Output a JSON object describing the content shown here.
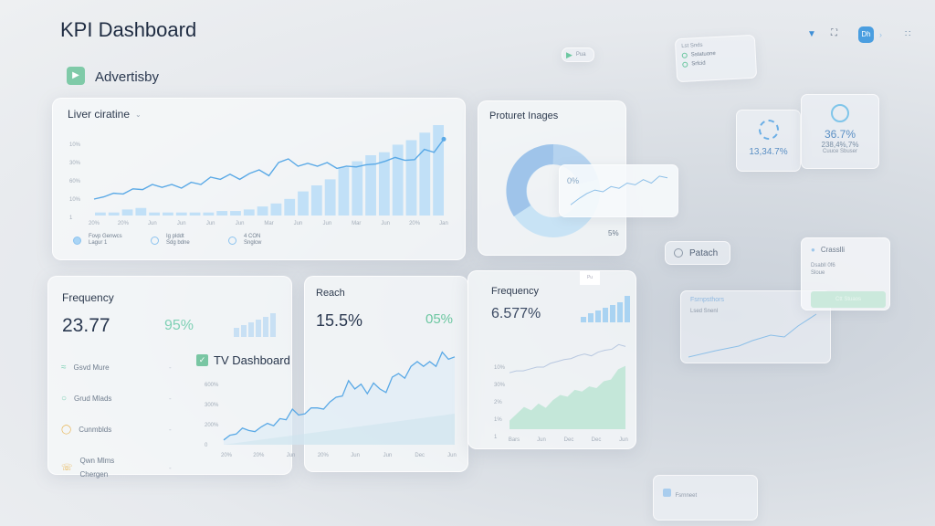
{
  "header": {
    "title": "KPI Dashboard",
    "brand": "Advertisby"
  },
  "colors": {
    "accent": "#5aa9e6",
    "bar": "#b9dcf7",
    "green": "#6cc7a1",
    "teal": "#7fd1b5",
    "amber": "#e8b450"
  },
  "top_icons": [
    "wifi-icon",
    "expand-icon",
    "dh-button",
    "chevron-right-icon",
    "grid-icon"
  ],
  "top_active_label": "Dh",
  "floating": {
    "play_chip": "Pua",
    "list_card": {
      "header": "Lst Snds",
      "items": [
        "Sstatuone",
        "Srfcid"
      ]
    },
    "kpi1": {
      "value": "13,34.7%"
    },
    "kpi2": {
      "value": "36.7%",
      "sub": "238,4%,7%",
      "caption": "Cuuce Sbuser"
    },
    "patach": "Patach",
    "crasslli": {
      "title": "Crasslli",
      "lines": [
        "Dsabll 0f6",
        "Sloue"
      ],
      "button": "Ctt Stuaos"
    },
    "line_card": {
      "title": "Fsrnpsthors",
      "item": "Lsed Snenl"
    },
    "bottom_card": "Fsrnneet"
  },
  "main_chart": {
    "title": "Liver ciratine",
    "y_ticks": [
      "10%",
      "30%",
      "60%",
      "10%",
      "1"
    ],
    "x_ticks": [
      "20%",
      "20%",
      "Jun",
      "Jun",
      "Jun",
      "Jun",
      "Mar",
      "Jun",
      "Jun",
      "Mar",
      "Jun",
      "20%",
      "Jan"
    ],
    "line": [
      10,
      13,
      18,
      17,
      24,
      23,
      30,
      26,
      30,
      25,
      33,
      30,
      40,
      37,
      44,
      37,
      45,
      50,
      42,
      60,
      65,
      55,
      59,
      55,
      60,
      52,
      55,
      54,
      57,
      58,
      62,
      67,
      63,
      64,
      78,
      74,
      92
    ],
    "bars": [
      2,
      2,
      4,
      5,
      2,
      2,
      2,
      2,
      2,
      3,
      3,
      4,
      6,
      8,
      11,
      16,
      20,
      24,
      32,
      36,
      40,
      42,
      47,
      50,
      55,
      60
    ],
    "legend": [
      {
        "l1": "Fovp Genwcs",
        "l2": "Lagur 1"
      },
      {
        "l1": "Ig plddt",
        "l2": "Sdg bdne"
      },
      {
        "l1": "4 CON",
        "l2": "Snglcw"
      }
    ]
  },
  "donut": {
    "title": "Proturet Inages",
    "overlay_value": "0%",
    "corner_value": "5%",
    "line": [
      5,
      12,
      18,
      22,
      20,
      26,
      24,
      30,
      28,
      34,
      30,
      38,
      36
    ]
  },
  "frequency": {
    "title": "Frequency",
    "value": "23.77",
    "change": "95%",
    "mini_bars": [
      3,
      4,
      5,
      6,
      7,
      8
    ],
    "items": [
      {
        "label": "Gsvd Mure",
        "icon": "chart-icon",
        "color": "#7fd1b5"
      },
      {
        "label": "Grud Mlads",
        "icon": "chat-icon",
        "color": "#7fd1b5"
      },
      {
        "label": "Cunmblds",
        "icon": "shield-icon",
        "color": "#e8b450"
      },
      {
        "label": "Qwn Mlms",
        "sub": "Chergen",
        "icon": "phone-icon",
        "color": "#e8b450"
      }
    ]
  },
  "tv": {
    "title": "TV Dashboard",
    "y_ticks": [
      "600%",
      "300%",
      "200%",
      "0"
    ],
    "x_ticks": [
      "20%",
      "20%",
      "Jun",
      "20%",
      "Jun",
      "Jun",
      "Dec",
      "Jun"
    ],
    "line": [
      4,
      8,
      9,
      14,
      12,
      11,
      15,
      18,
      16,
      22,
      21,
      30,
      25,
      26,
      31,
      31,
      30,
      36,
      40,
      41,
      54,
      47,
      51,
      43,
      52,
      47,
      44,
      57,
      60,
      56,
      66,
      70,
      66,
      70,
      66,
      78,
      72,
      74
    ]
  },
  "reach": {
    "title": "Reach",
    "value": "15.5%",
    "change": "05%"
  },
  "frequency2": {
    "title": "Frequency",
    "value": "6.577%",
    "chip": "Pu",
    "mini_bars": [
      2,
      3,
      4,
      5,
      6,
      7,
      9
    ],
    "y_ticks": [
      "10%",
      "30%",
      "2%",
      "1%",
      "1"
    ],
    "x_ticks": [
      "Bars",
      "Jun",
      "Dec",
      "Dec",
      "Jun"
    ],
    "line": [
      60,
      62,
      62,
      64,
      66,
      66,
      70,
      72,
      74,
      75,
      78,
      80,
      78,
      82,
      84,
      85,
      90,
      88
    ],
    "area": [
      10,
      18,
      26,
      22,
      30,
      25,
      34,
      40,
      38,
      46,
      44,
      50,
      48,
      56,
      58,
      70,
      74
    ]
  }
}
